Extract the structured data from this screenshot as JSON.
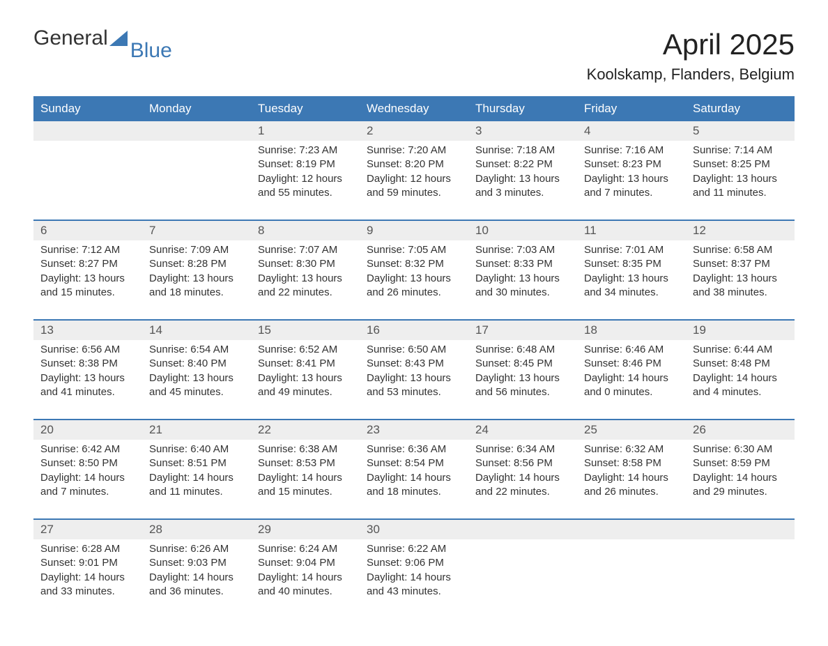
{
  "logo": {
    "general": "General",
    "blue": "Blue"
  },
  "title": "April 2025",
  "subtitle": "Koolskamp, Flanders, Belgium",
  "colors": {
    "header_bg": "#3c78b4",
    "header_fg": "#ffffff",
    "daynum_bg": "#eeeeee",
    "week_divider": "#3c78b4",
    "text": "#333333",
    "logo_blue": "#3c78b4"
  },
  "weekdays": [
    "Sunday",
    "Monday",
    "Tuesday",
    "Wednesday",
    "Thursday",
    "Friday",
    "Saturday"
  ],
  "weeks": [
    [
      null,
      null,
      {
        "n": "1",
        "sunrise": "7:23 AM",
        "sunset": "8:19 PM",
        "daylight1": "12 hours",
        "daylight2": "and 55 minutes."
      },
      {
        "n": "2",
        "sunrise": "7:20 AM",
        "sunset": "8:20 PM",
        "daylight1": "12 hours",
        "daylight2": "and 59 minutes."
      },
      {
        "n": "3",
        "sunrise": "7:18 AM",
        "sunset": "8:22 PM",
        "daylight1": "13 hours",
        "daylight2": "and 3 minutes."
      },
      {
        "n": "4",
        "sunrise": "7:16 AM",
        "sunset": "8:23 PM",
        "daylight1": "13 hours",
        "daylight2": "and 7 minutes."
      },
      {
        "n": "5",
        "sunrise": "7:14 AM",
        "sunset": "8:25 PM",
        "daylight1": "13 hours",
        "daylight2": "and 11 minutes."
      }
    ],
    [
      {
        "n": "6",
        "sunrise": "7:12 AM",
        "sunset": "8:27 PM",
        "daylight1": "13 hours",
        "daylight2": "and 15 minutes."
      },
      {
        "n": "7",
        "sunrise": "7:09 AM",
        "sunset": "8:28 PM",
        "daylight1": "13 hours",
        "daylight2": "and 18 minutes."
      },
      {
        "n": "8",
        "sunrise": "7:07 AM",
        "sunset": "8:30 PM",
        "daylight1": "13 hours",
        "daylight2": "and 22 minutes."
      },
      {
        "n": "9",
        "sunrise": "7:05 AM",
        "sunset": "8:32 PM",
        "daylight1": "13 hours",
        "daylight2": "and 26 minutes."
      },
      {
        "n": "10",
        "sunrise": "7:03 AM",
        "sunset": "8:33 PM",
        "daylight1": "13 hours",
        "daylight2": "and 30 minutes."
      },
      {
        "n": "11",
        "sunrise": "7:01 AM",
        "sunset": "8:35 PM",
        "daylight1": "13 hours",
        "daylight2": "and 34 minutes."
      },
      {
        "n": "12",
        "sunrise": "6:58 AM",
        "sunset": "8:37 PM",
        "daylight1": "13 hours",
        "daylight2": "and 38 minutes."
      }
    ],
    [
      {
        "n": "13",
        "sunrise": "6:56 AM",
        "sunset": "8:38 PM",
        "daylight1": "13 hours",
        "daylight2": "and 41 minutes."
      },
      {
        "n": "14",
        "sunrise": "6:54 AM",
        "sunset": "8:40 PM",
        "daylight1": "13 hours",
        "daylight2": "and 45 minutes."
      },
      {
        "n": "15",
        "sunrise": "6:52 AM",
        "sunset": "8:41 PM",
        "daylight1": "13 hours",
        "daylight2": "and 49 minutes."
      },
      {
        "n": "16",
        "sunrise": "6:50 AM",
        "sunset": "8:43 PM",
        "daylight1": "13 hours",
        "daylight2": "and 53 minutes."
      },
      {
        "n": "17",
        "sunrise": "6:48 AM",
        "sunset": "8:45 PM",
        "daylight1": "13 hours",
        "daylight2": "and 56 minutes."
      },
      {
        "n": "18",
        "sunrise": "6:46 AM",
        "sunset": "8:46 PM",
        "daylight1": "14 hours",
        "daylight2": "and 0 minutes."
      },
      {
        "n": "19",
        "sunrise": "6:44 AM",
        "sunset": "8:48 PM",
        "daylight1": "14 hours",
        "daylight2": "and 4 minutes."
      }
    ],
    [
      {
        "n": "20",
        "sunrise": "6:42 AM",
        "sunset": "8:50 PM",
        "daylight1": "14 hours",
        "daylight2": "and 7 minutes."
      },
      {
        "n": "21",
        "sunrise": "6:40 AM",
        "sunset": "8:51 PM",
        "daylight1": "14 hours",
        "daylight2": "and 11 minutes."
      },
      {
        "n": "22",
        "sunrise": "6:38 AM",
        "sunset": "8:53 PM",
        "daylight1": "14 hours",
        "daylight2": "and 15 minutes."
      },
      {
        "n": "23",
        "sunrise": "6:36 AM",
        "sunset": "8:54 PM",
        "daylight1": "14 hours",
        "daylight2": "and 18 minutes."
      },
      {
        "n": "24",
        "sunrise": "6:34 AM",
        "sunset": "8:56 PM",
        "daylight1": "14 hours",
        "daylight2": "and 22 minutes."
      },
      {
        "n": "25",
        "sunrise": "6:32 AM",
        "sunset": "8:58 PM",
        "daylight1": "14 hours",
        "daylight2": "and 26 minutes."
      },
      {
        "n": "26",
        "sunrise": "6:30 AM",
        "sunset": "8:59 PM",
        "daylight1": "14 hours",
        "daylight2": "and 29 minutes."
      }
    ],
    [
      {
        "n": "27",
        "sunrise": "6:28 AM",
        "sunset": "9:01 PM",
        "daylight1": "14 hours",
        "daylight2": "and 33 minutes."
      },
      {
        "n": "28",
        "sunrise": "6:26 AM",
        "sunset": "9:03 PM",
        "daylight1": "14 hours",
        "daylight2": "and 36 minutes."
      },
      {
        "n": "29",
        "sunrise": "6:24 AM",
        "sunset": "9:04 PM",
        "daylight1": "14 hours",
        "daylight2": "and 40 minutes."
      },
      {
        "n": "30",
        "sunrise": "6:22 AM",
        "sunset": "9:06 PM",
        "daylight1": "14 hours",
        "daylight2": "and 43 minutes."
      },
      null,
      null,
      null
    ]
  ],
  "labels": {
    "sunrise_prefix": "Sunrise: ",
    "sunset_prefix": "Sunset: ",
    "daylight_prefix": "Daylight: "
  }
}
